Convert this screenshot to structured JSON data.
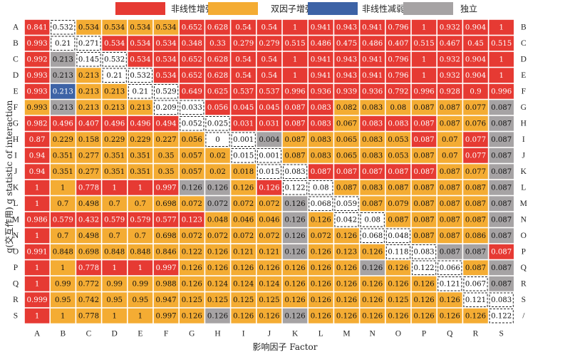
{
  "chart_data": {
    "type": "heatmap",
    "xlabel": "影响因子 Factor",
    "ylabel": "q(交互作用) q statistic of interaction",
    "row_labels": [
      "A",
      "B",
      "C",
      "D",
      "E",
      "F",
      "G",
      "H",
      "I",
      "J",
      "K",
      "L",
      "M",
      "N",
      "O",
      "P",
      "Q",
      "R",
      "S"
    ],
    "right_labels": [
      "B",
      "C",
      "D",
      "E",
      "F",
      "G",
      "H",
      "I",
      "J",
      "K",
      "L",
      "M",
      "N",
      "O",
      "P",
      "Q",
      "R",
      "S",
      "/"
    ],
    "col_labels": [
      "A",
      "B",
      "C",
      "D",
      "E",
      "F",
      "G",
      "H",
      "I",
      "J",
      "K",
      "L",
      "M",
      "N",
      "O",
      "P",
      "Q",
      "R",
      "S"
    ],
    "legend": [
      {
        "key": "N",
        "label": "非线性增强",
        "color": "#e63a33"
      },
      {
        "key": "D",
        "label": "双因子增强",
        "color": "#f4ac33"
      },
      {
        "key": "W",
        "label": "非线性减弱",
        "color": "#3d63a6"
      },
      {
        "key": "I",
        "label": "独立",
        "color": "#a6a3a4"
      }
    ],
    "values": [
      [
        "0.841",
        "0.532",
        "0.534",
        "0.534",
        "0.534",
        "0.534",
        "0.652",
        "0.628",
        "0.54",
        "0.54",
        "1",
        "0.941",
        "0.943",
        "0.941",
        "0.796",
        "1",
        "0.932",
        "0.904",
        "1"
      ],
      [
        "0.993",
        "0.21",
        "0.271",
        "0.534",
        "0.534",
        "0.534",
        "0.348",
        "0.33",
        "0.279",
        "0.279",
        "0.515",
        "0.486",
        "0.475",
        "0.486",
        "0.407",
        "0.515",
        "0.467",
        "0.45",
        "0.515"
      ],
      [
        "0.992",
        "0.213",
        "0.145",
        "0.532",
        "0.534",
        "0.534",
        "0.652",
        "0.628",
        "0.54",
        "0.54",
        "1",
        "0.941",
        "0.943",
        "0.941",
        "0.796",
        "1",
        "0.932",
        "0.904",
        "1"
      ],
      [
        "0.993",
        "0.213",
        "0.213",
        "0.21",
        "0.532",
        "0.534",
        "0.652",
        "0.628",
        "0.54",
        "0.54",
        "1",
        "0.941",
        "0.943",
        "0.941",
        "0.796",
        "1",
        "0.932",
        "0.904",
        "1"
      ],
      [
        "0.993",
        "0.213",
        "0.213",
        "0.213",
        "0.21",
        "0.529",
        "0.649",
        "0.625",
        "0.537",
        "0.537",
        "0.996",
        "0.936",
        "0.939",
        "0.936",
        "0.792",
        "0.996",
        "0.928",
        "0.9",
        "0.996"
      ],
      [
        "0.993",
        "0.213",
        "0.213",
        "0.213",
        "0.213",
        "0.209",
        "0.033",
        "0.056",
        "0.045",
        "0.045",
        "0.087",
        "0.083",
        "0.082",
        "0.083",
        "0.08",
        "0.087",
        "0.087",
        "0.077",
        "0.087"
      ],
      [
        "0.982",
        "0.496",
        "0.407",
        "0.496",
        "0.496",
        "0.494",
        "0.052",
        "0.025",
        "0.031",
        "0.031",
        "0.087",
        "0.083",
        "0.067",
        "0.083",
        "0.083",
        "0.087",
        "0.087",
        "0.076",
        "0.087"
      ],
      [
        "0.87",
        "0.229",
        "0.158",
        "0.229",
        "0.229",
        "0.227",
        "0.056",
        "0",
        "0.001",
        "0.004",
        "0.087",
        "0.083",
        "0.065",
        "0.083",
        "0.053",
        "0.087",
        "0.07",
        "0.077",
        "0.087"
      ],
      [
        "0.94",
        "0.351",
        "0.277",
        "0.351",
        "0.351",
        "0.35",
        "0.057",
        "0.02",
        "0.015",
        "0.001",
        "0.087",
        "0.083",
        "0.065",
        "0.083",
        "0.053",
        "0.087",
        "0.07",
        "0.077",
        "0.087"
      ],
      [
        "0.94",
        "0.351",
        "0.277",
        "0.351",
        "0.351",
        "0.35",
        "0.057",
        "0.02",
        "0.018",
        "0.015",
        "0.083",
        "0.087",
        "0.087",
        "0.087",
        "0.087",
        "0.087",
        "0.087",
        "0.077",
        "0.087"
      ],
      [
        "1",
        "1",
        "0.778",
        "1",
        "1",
        "0.997",
        "0.126",
        "0.126",
        "0.126",
        "0.126",
        "0.122",
        "0.08",
        "0.087",
        "0.083",
        "0.087",
        "0.087",
        "0.087",
        "0.087",
        "0.087"
      ],
      [
        "1",
        "0.7",
        "0.498",
        "0.7",
        "0.7",
        "0.698",
        "0.072",
        "0.072",
        "0.072",
        "0.072",
        "0.126",
        "0.068",
        "0.059",
        "0.087",
        "0.079",
        "0.087",
        "0.087",
        "0.087",
        "0.087"
      ],
      [
        "0.986",
        "0.579",
        "0.432",
        "0.579",
        "0.579",
        "0.577",
        "0.123",
        "0.048",
        "0.046",
        "0.046",
        "0.126",
        "0.126",
        "0.042",
        "0.08",
        "0.087",
        "0.087",
        "0.087",
        "0.087",
        "0.087"
      ],
      [
        "1",
        "0.7",
        "0.498",
        "0.7",
        "0.7",
        "0.698",
        "0.072",
        "0.072",
        "0.072",
        "0.072",
        "0.126",
        "0.072",
        "0.126",
        "0.068",
        "0.048",
        "0.087",
        "0.087",
        "0.086",
        "0.087"
      ],
      [
        "0.991",
        "0.848",
        "0.698",
        "0.848",
        "0.848",
        "0.846",
        "0.122",
        "0.126",
        "0.121",
        "0.121",
        "0.126",
        "0.126",
        "0.123",
        "0.126",
        "0.118",
        "0.083",
        "0.087",
        "0.087",
        "0.087"
      ],
      [
        "1",
        "1",
        "0.778",
        "1",
        "1",
        "0.997",
        "0.126",
        "0.126",
        "0.126",
        "0.126",
        "0.126",
        "0.126",
        "0.126",
        "0.126",
        "0.126",
        "0.122",
        "0.066",
        "0.087",
        "0.087"
      ],
      [
        "1",
        "0.99",
        "0.772",
        "0.99",
        "0.99",
        "0.988",
        "0.126",
        "0.124",
        "0.124",
        "0.124",
        "0.126",
        "0.126",
        "0.126",
        "0.126",
        "0.126",
        "0.126",
        "0.121",
        "0.067",
        "0.087"
      ],
      [
        "0.999",
        "0.95",
        "0.742",
        "0.95",
        "0.95",
        "0.947",
        "0.125",
        "0.125",
        "0.125",
        "0.125",
        "0.126",
        "0.126",
        "0.126",
        "0.126",
        "0.125",
        "0.126",
        "0.126",
        "0.121",
        "0.083"
      ],
      [
        "1",
        "1",
        "0.778",
        "1",
        "1",
        "0.997",
        "0.126",
        "0.126",
        "0.126",
        "0.126",
        "0.126",
        "0.126",
        "0.126",
        "0.126",
        "0.126",
        "0.126",
        "0.126",
        "0.126",
        "0.122"
      ]
    ],
    "types": [
      "NxDDDDNNNNNNNNNNNNN",
      "NxxNNNNNNNNNNNNNNNN",
      "NIxxNNNNNNNNNNNNNNN",
      "NIDxxNNNNNNNNNNNNNN",
      "NWDDxxNNNNNNNNNNNNN",
      "DIDDDxxNNNNNDDDDDDI",
      "NNNNNNxxNNNNDNNNDDI",
      "NDDDDDDxxIDDDDDNDNI",
      "NDDDDDDDxxDDDDDDDNI",
      "NDDDDDDDDxxNNNNNDDI",
      "NDNNNNIIDNxxDDDDDDI",
      "NDDDDDDIDDIxxDDDDDI",
      "NNNNNNNDDDIDxxDDDDI",
      "NDDDDDDDDDIDDxxDDDI",
      "NDDDDDDDDDIDDDxxIIN",
      "NDNNNNDDDDDDDIDxxDI",
      "NDDDDDDDDDDDDDDDxxI",
      "NDDDDDDDDDDDDDDDDxx",
      "NDDDDDDIDDIDDDDDDDx"
    ]
  }
}
